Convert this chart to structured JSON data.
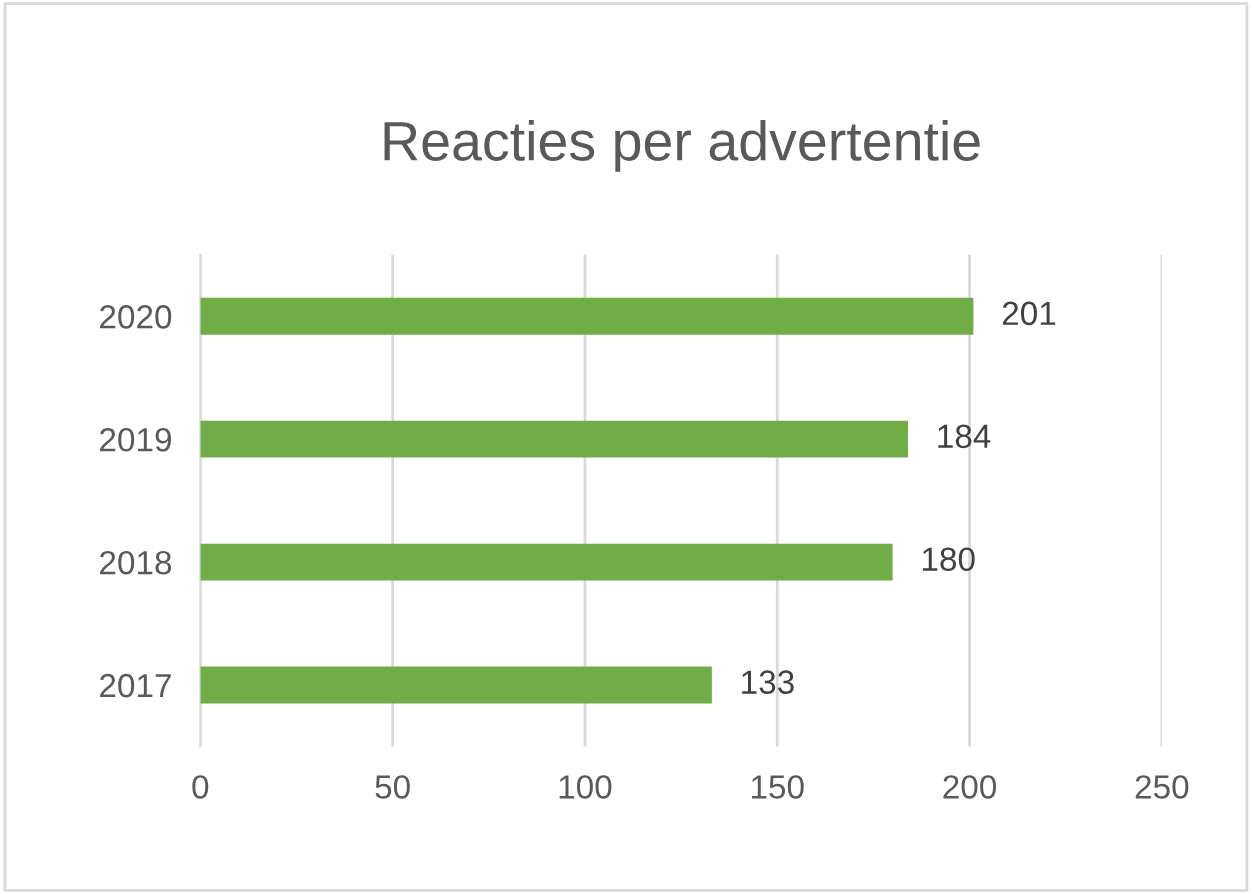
{
  "chart_data": {
    "type": "bar",
    "orientation": "horizontal",
    "title": "Reacties per advertentie",
    "categories": [
      "2020",
      "2019",
      "2018",
      "2017"
    ],
    "values": [
      201,
      184,
      180,
      133
    ],
    "color": "#70ad47",
    "xlim": [
      0,
      250
    ],
    "xticks": [
      0,
      50,
      100,
      150,
      200,
      250
    ],
    "grid": "x",
    "data_labels": true,
    "legend": false
  }
}
